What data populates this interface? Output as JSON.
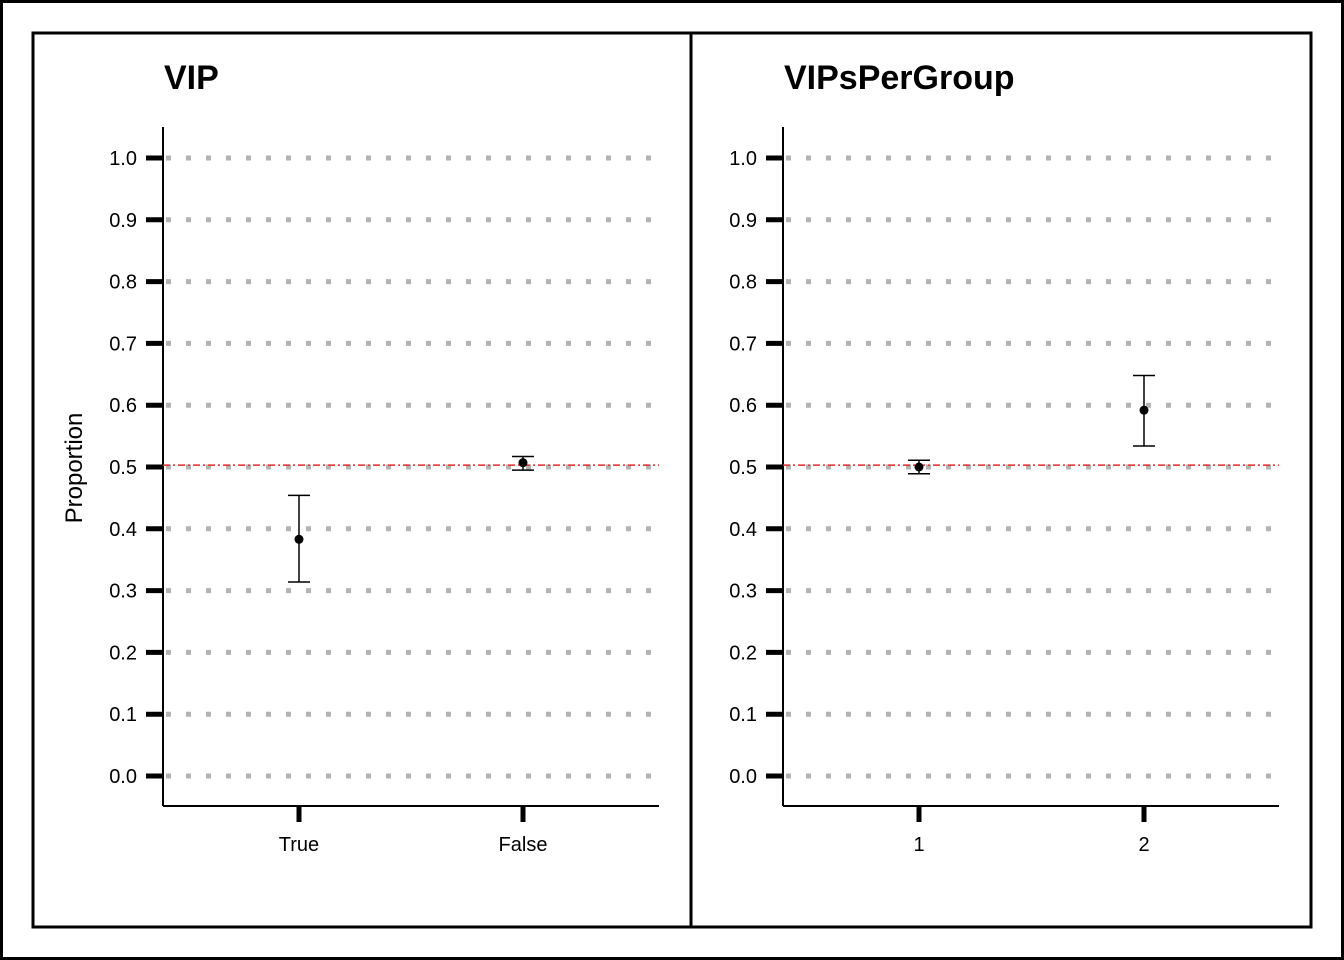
{
  "chart_data": [
    {
      "type": "scatter",
      "title": "VIP",
      "ylabel": "Proportion",
      "xlabel": "",
      "categories": [
        "True",
        "False"
      ],
      "values": [
        0.383,
        0.507
      ],
      "error_low": [
        0.314,
        0.495
      ],
      "error_high": [
        0.454,
        0.517
      ],
      "ylim": [
        0.0,
        1.0
      ],
      "yticks": [
        "0.0",
        "0.1",
        "0.2",
        "0.3",
        "0.4",
        "0.5",
        "0.6",
        "0.7",
        "0.8",
        "0.9",
        "1.0"
      ],
      "reference_line": 0.503,
      "grid": true
    },
    {
      "type": "scatter",
      "title": "VIPsPerGroup",
      "ylabel": "",
      "xlabel": "",
      "categories": [
        "1",
        "2"
      ],
      "values": [
        0.5,
        0.592
      ],
      "error_low": [
        0.489,
        0.534
      ],
      "error_high": [
        0.511,
        0.648
      ],
      "ylim": [
        0.0,
        1.0
      ],
      "yticks": [
        "0.0",
        "0.1",
        "0.2",
        "0.3",
        "0.4",
        "0.5",
        "0.6",
        "0.7",
        "0.8",
        "0.9",
        "1.0"
      ],
      "reference_line": 0.503,
      "grid": true
    }
  ],
  "colors": {
    "reference_line": "#e8272b",
    "grid": "#b3b3b3",
    "points": "#000000"
  }
}
